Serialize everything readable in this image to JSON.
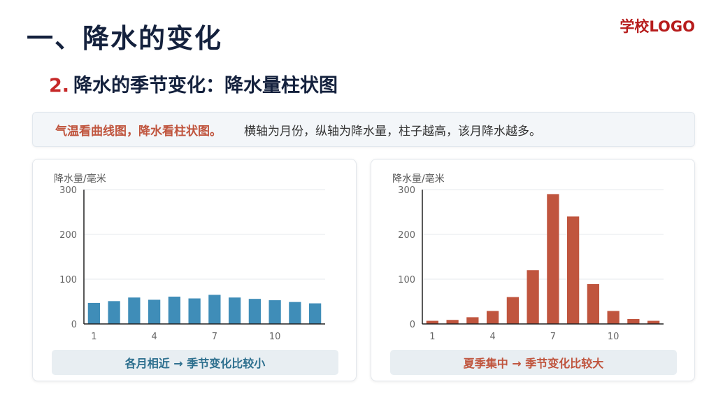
{
  "header": {
    "title": "一、降水的变化",
    "logo": "学校LOGO",
    "subtitle_num": "2.",
    "subtitle_text": "降水的季节变化：降水量柱状图"
  },
  "note": {
    "highlight": "气温看曲线图，降水看柱状图。",
    "text": "横轴为月份，纵轴为降水量，柱子越高，该月降水越多。"
  },
  "colors": {
    "left_bar": "#3f8db8",
    "right_bar": "#c0553e"
  },
  "chart_data": [
    {
      "type": "bar",
      "ylabel": "降水量/毫米",
      "ylim": [
        0,
        300
      ],
      "yticks": [
        0,
        100,
        200,
        300
      ],
      "categories": [
        1,
        2,
        3,
        4,
        5,
        6,
        7,
        8,
        9,
        10,
        11,
        12
      ],
      "xtick_labels": [
        "1",
        "4",
        "7",
        "10"
      ],
      "values": [
        47,
        51,
        59,
        54,
        61,
        57,
        65,
        59,
        56,
        53,
        49,
        46
      ],
      "grid": true,
      "caption": "各月相近 → 季节变化比较小"
    },
    {
      "type": "bar",
      "ylabel": "降水量/毫米",
      "ylim": [
        0,
        300
      ],
      "yticks": [
        0,
        100,
        200,
        300
      ],
      "categories": [
        1,
        2,
        3,
        4,
        5,
        6,
        7,
        8,
        9,
        10,
        11,
        12
      ],
      "xtick_labels": [
        "1",
        "4",
        "7",
        "10"
      ],
      "values": [
        7,
        9,
        15,
        29,
        60,
        120,
        290,
        240,
        89,
        29,
        11,
        7
      ],
      "grid": true,
      "caption": "夏季集中 → 季节变化比较大"
    }
  ]
}
